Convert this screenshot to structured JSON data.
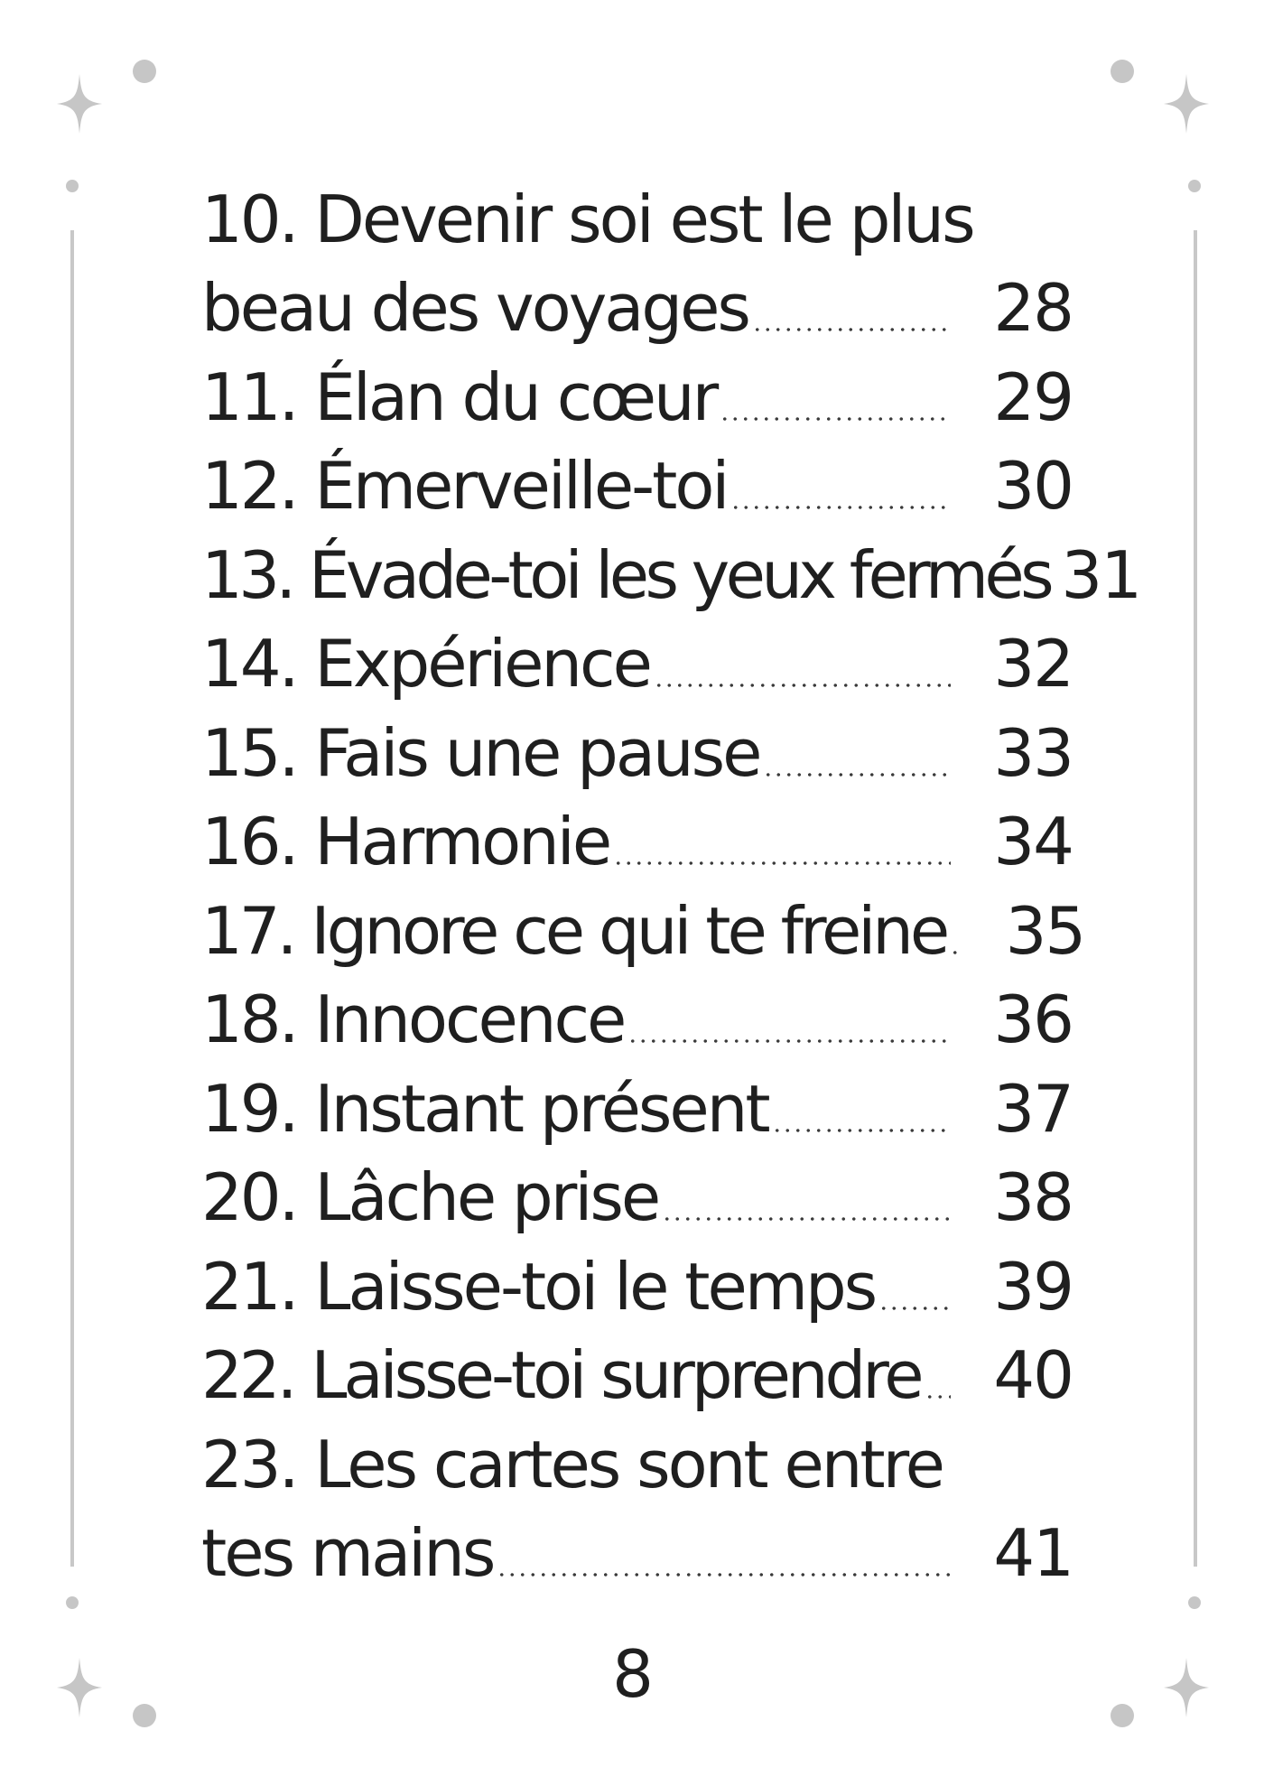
{
  "toc": {
    "entries": [
      {
        "lines": [
          "10. Devenir soi est le plus",
          "beau des voyages"
        ],
        "page": "28"
      },
      {
        "lines": [
          "11. Élan du cœur"
        ],
        "page": "29"
      },
      {
        "lines": [
          "12. Émerveille-toi"
        ],
        "page": "30"
      },
      {
        "lines": [
          "13. Évade-toi les yeux fermés"
        ],
        "page": "31"
      },
      {
        "lines": [
          "14. Expérience"
        ],
        "page": "32"
      },
      {
        "lines": [
          "15. Fais une pause"
        ],
        "page": "33"
      },
      {
        "lines": [
          "16. Harmonie"
        ],
        "page": "34"
      },
      {
        "lines": [
          "17. Ignore ce qui te freine"
        ],
        "page": "35"
      },
      {
        "lines": [
          "18. Innocence"
        ],
        "page": "36"
      },
      {
        "lines": [
          "19. Instant présent"
        ],
        "page": "37"
      },
      {
        "lines": [
          "20. Lâche prise"
        ],
        "page": "38"
      },
      {
        "lines": [
          "21. Laisse-toi le temps"
        ],
        "page": "39"
      },
      {
        "lines": [
          "22. Laisse-toi surprendre"
        ],
        "page": "40"
      },
      {
        "lines": [
          "23. Les cartes sont entre",
          "tes mains"
        ],
        "page": "41"
      }
    ]
  },
  "folio": "8",
  "decoration": {
    "ornament_color": "#c6c6c6",
    "icons": [
      "sparkle-star-icon",
      "dot-icon"
    ]
  }
}
